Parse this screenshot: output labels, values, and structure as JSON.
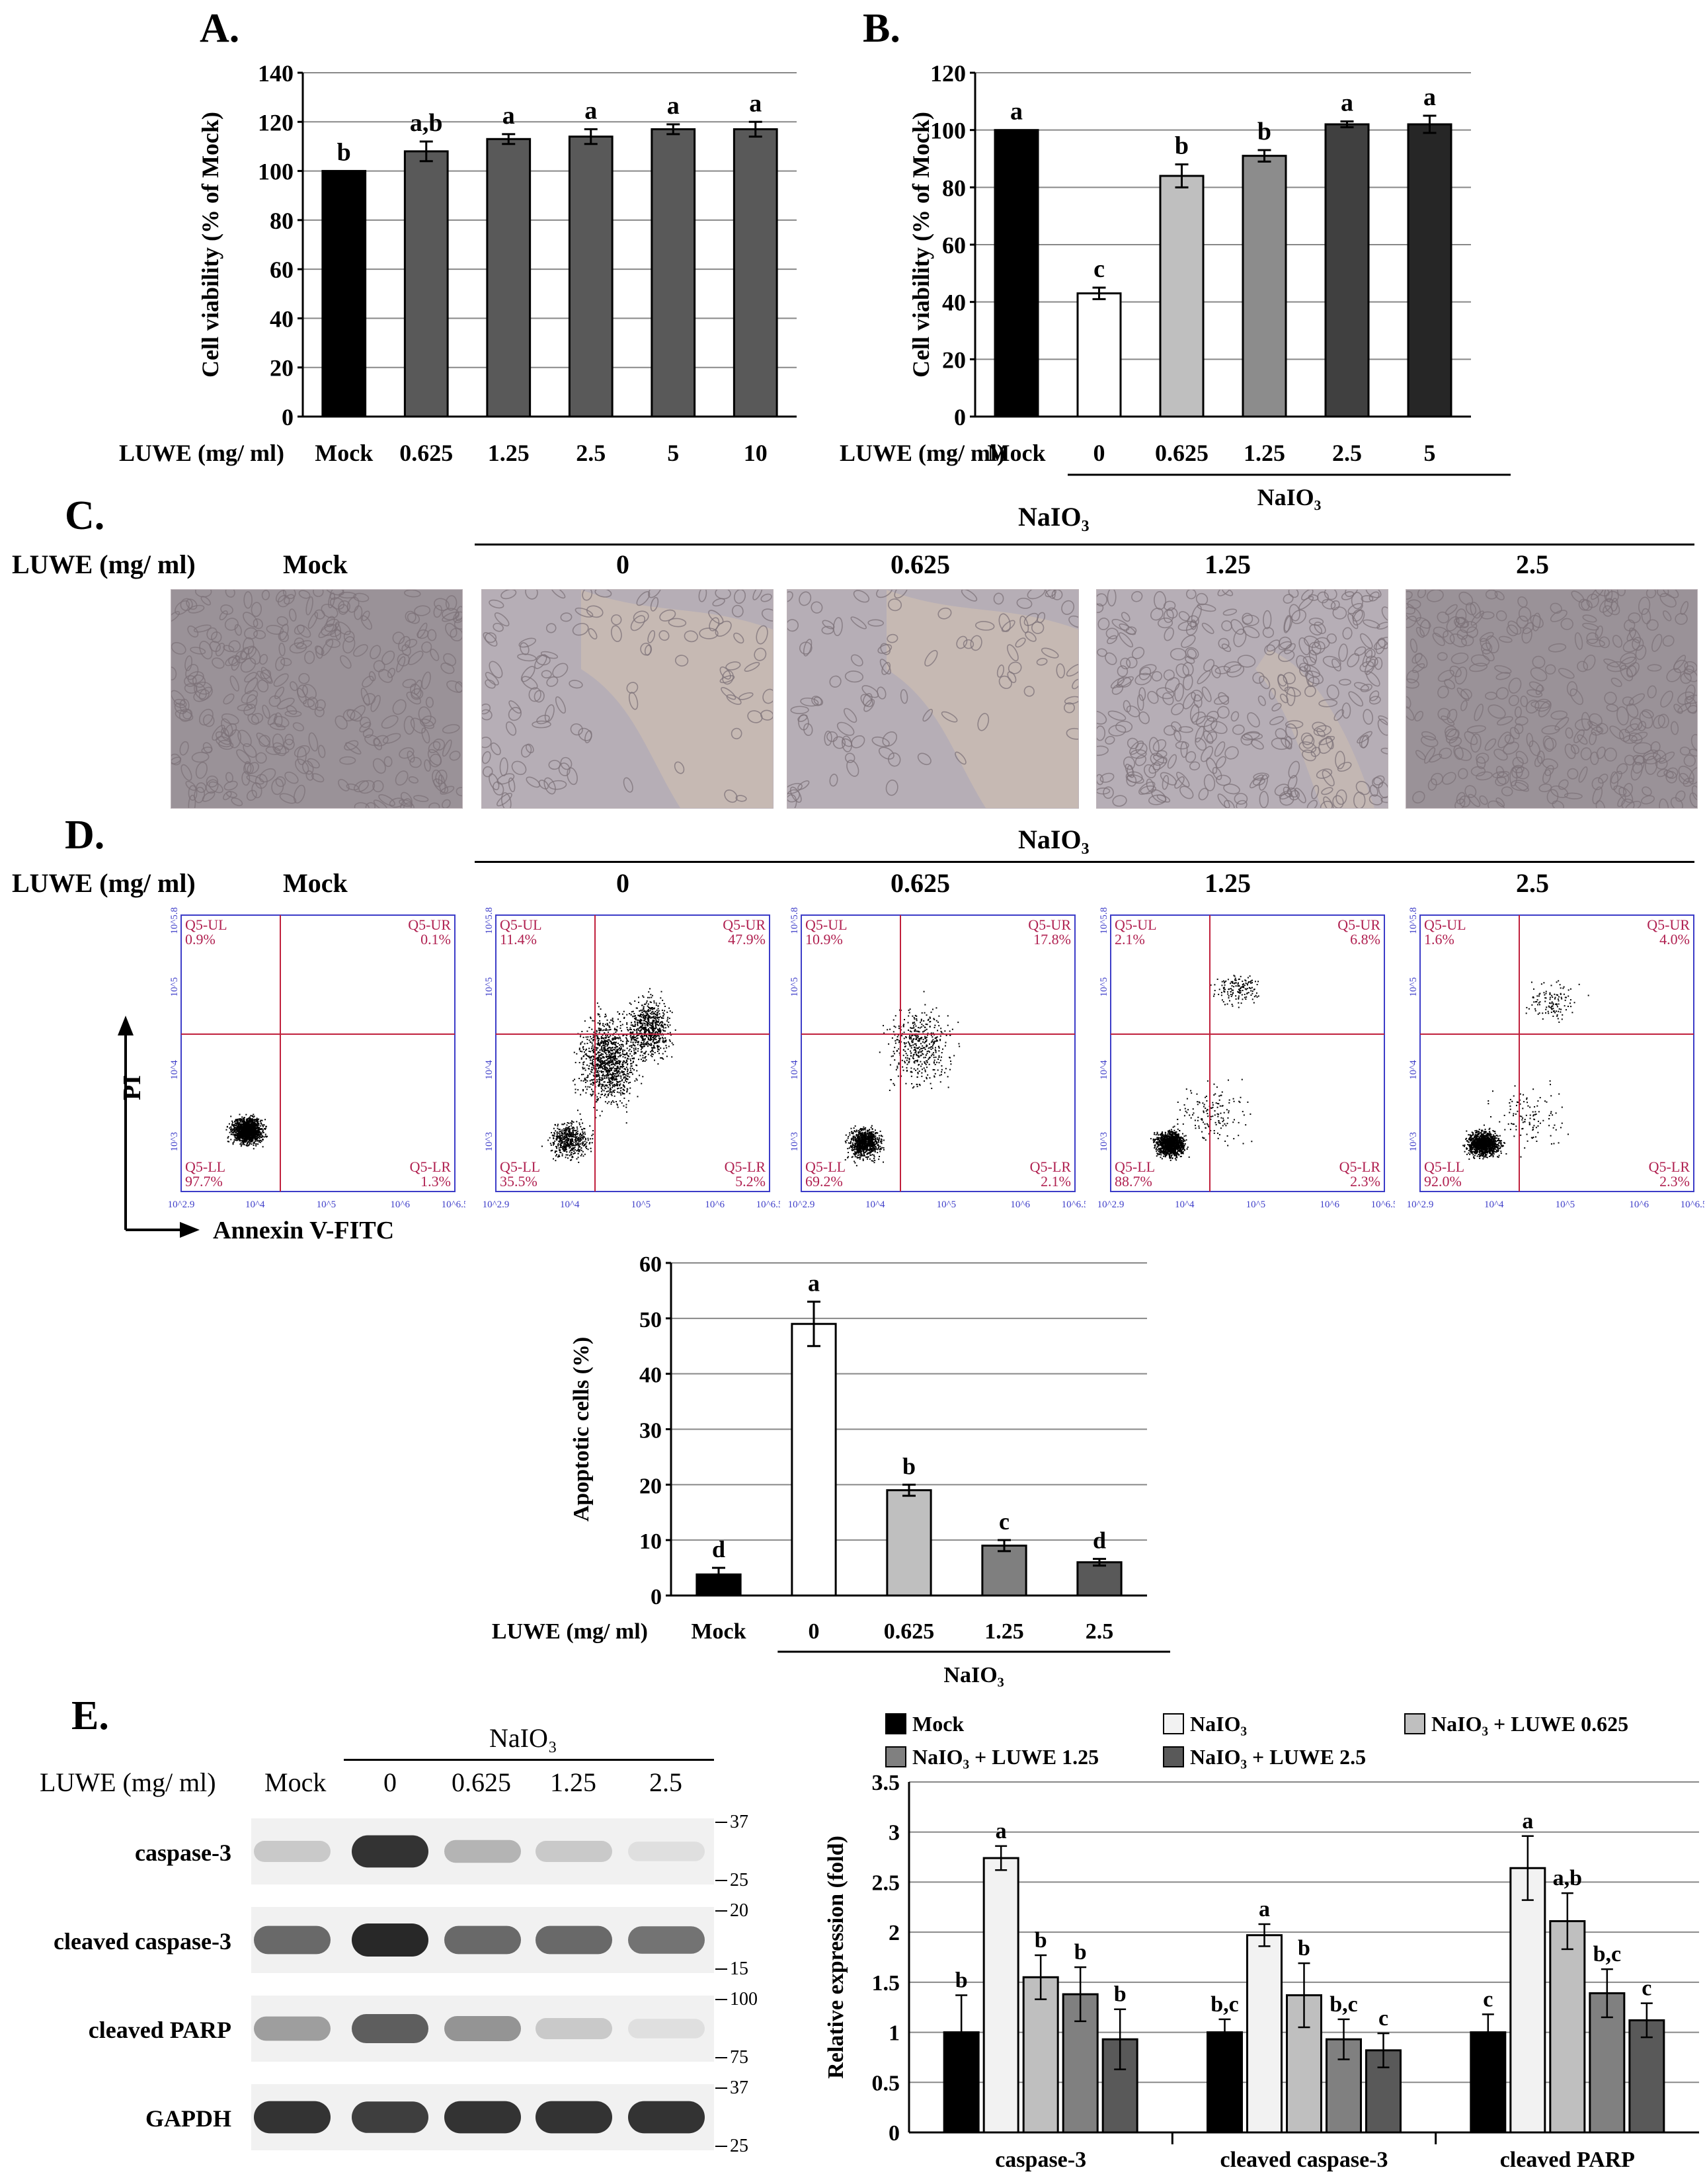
{
  "panel_letters": {
    "A": "A.",
    "B": "B.",
    "C": "C.",
    "D": "D.",
    "E": "E."
  },
  "luwe_label": "LUWE (mg/ ml)",
  "naio3_label": "NaIO₃",
  "panelC": {
    "columns": [
      "Mock",
      "0",
      "0.625",
      "1.25",
      "2.5"
    ],
    "colors": {
      "mock": "#9a9298",
      "sheet": "#b6aeb6",
      "cleared": "#c7b9b3",
      "cell": "#7c7278"
    }
  },
  "panelD_flow": {
    "columns": [
      "Mock",
      "0",
      "0.625",
      "1.25",
      "2.5"
    ],
    "y_axis_label": "PI",
    "x_axis_label": "Annexin V-FITC",
    "quadrant_names": [
      "Q5-UL",
      "Q5-UR",
      "Q5-LL",
      "Q5-LR"
    ],
    "x_ticks": [
      "10^2.9",
      "10^4",
      "10^5",
      "10^6",
      "10^6.5"
    ],
    "y_ticks": [
      "10^3",
      "10^4",
      "10^5",
      "10^5.8"
    ],
    "plots": [
      {
        "UL": "0.9%",
        "UR": "0.1%",
        "LL": "97.7%",
        "LR": "1.3%"
      },
      {
        "UL": "11.4%",
        "UR": "47.9%",
        "LL": "35.5%",
        "LR": "5.2%"
      },
      {
        "UL": "10.9%",
        "UR": "17.8%",
        "LL": "69.2%",
        "LR": "2.1%"
      },
      {
        "UL": "2.1%",
        "UR": "6.8%",
        "LL": "88.7%",
        "LR": "2.3%"
      },
      {
        "UL": "1.6%",
        "UR": "4.0%",
        "LL": "92.0%",
        "LR": "2.3%"
      }
    ],
    "colors": {
      "frame": "#3c3cc8",
      "gate": "#c0203c",
      "label": "#b02050",
      "dot": "#000000"
    }
  },
  "panelE_blot": {
    "header": [
      "Mock",
      "0",
      "0.625",
      "1.25",
      "2.5"
    ],
    "rows": [
      {
        "name": "caspase-3",
        "markers": [
          "37",
          "25"
        ],
        "intensity": [
          0.25,
          0.95,
          0.35,
          0.25,
          0.15
        ]
      },
      {
        "name": "cleaved caspase-3",
        "markers": [
          "20",
          "15"
        ],
        "intensity": [
          0.7,
          1.0,
          0.7,
          0.7,
          0.65
        ]
      },
      {
        "name": "cleaved PARP",
        "markers": [
          "100",
          "75"
        ],
        "intensity": [
          0.45,
          0.75,
          0.5,
          0.25,
          0.15
        ]
      },
      {
        "name": "GAPDH",
        "markers": [
          "37",
          "25"
        ],
        "intensity": [
          0.95,
          0.9,
          0.95,
          0.95,
          0.95
        ]
      }
    ]
  },
  "chart_data": [
    {
      "id": "A",
      "type": "bar",
      "categories": [
        "Mock",
        "0.625",
        "1.25",
        "2.5",
        "5",
        "10"
      ],
      "values": [
        100,
        108,
        113,
        114,
        117,
        117
      ],
      "errors": [
        0,
        4,
        2,
        3,
        2,
        3
      ],
      "letters": [
        "b",
        "a,b",
        "a",
        "a",
        "a",
        "a"
      ],
      "colors": [
        "#000000",
        "#595959",
        "#595959",
        "#595959",
        "#595959",
        "#595959"
      ],
      "ylabel": "Cell viability (% of Mock)",
      "xlabel": "LUWE (mg/ ml)",
      "ylim": [
        0,
        140
      ],
      "yticks": [
        0,
        20,
        40,
        60,
        80,
        100,
        120,
        140
      ],
      "grid": true
    },
    {
      "id": "B",
      "type": "bar",
      "categories": [
        "Mock",
        "0",
        "0.625",
        "1.25",
        "2.5",
        "5"
      ],
      "values": [
        100,
        43,
        84,
        91,
        102,
        102
      ],
      "errors": [
        0,
        2,
        4,
        2,
        1,
        3
      ],
      "letters": [
        "a",
        "c",
        "b",
        "b",
        "a",
        "a"
      ],
      "colors": [
        "#000000",
        "#ffffff",
        "#bfbfbf",
        "#8c8c8c",
        "#404040",
        "#262626"
      ],
      "ylabel": "Cell viability (% of Mock)",
      "xlabel": "LUWE (mg/ ml)",
      "group_label": "NaIO₃",
      "ylim": [
        0,
        120
      ],
      "yticks": [
        0,
        20,
        40,
        60,
        80,
        100,
        120
      ],
      "grid": true
    },
    {
      "id": "D",
      "type": "bar",
      "categories": [
        "Mock",
        "0",
        "0.625",
        "1.25",
        "2.5"
      ],
      "values": [
        3.8,
        49,
        19,
        9,
        6
      ],
      "errors": [
        1.2,
        4,
        1,
        1,
        0.6
      ],
      "letters": [
        "d",
        "a",
        "b",
        "c",
        "d"
      ],
      "colors": [
        "#000000",
        "#ffffff",
        "#bfbfbf",
        "#7f7f7f",
        "#595959"
      ],
      "ylabel": "Apoptotic cells (%)",
      "xlabel": "LUWE  (mg/ ml)",
      "group_label": "NaIO₃",
      "ylim": [
        0,
        60
      ],
      "yticks": [
        0,
        10,
        20,
        30,
        40,
        50,
        60
      ],
      "grid": true
    },
    {
      "id": "E",
      "type": "bar",
      "categories": [
        "caspase-3",
        "cleaved caspase-3",
        "cleaved PARP"
      ],
      "series": [
        {
          "name": "Mock",
          "color": "#000000",
          "values": [
            1.0,
            1.0,
            1.0
          ],
          "errors": [
            0.37,
            0.13,
            0.18
          ],
          "letters": [
            "b",
            "b,c",
            "c"
          ]
        },
        {
          "name": "NaIO₃",
          "color": "#f2f2f2",
          "values": [
            2.74,
            1.97,
            2.64
          ],
          "errors": [
            0.12,
            0.11,
            0.32
          ],
          "letters": [
            "a",
            "a",
            "a"
          ]
        },
        {
          "name": "NaIO₃ + LUWE 0.625",
          "color": "#bfbfbf",
          "values": [
            1.55,
            1.37,
            2.11
          ],
          "errors": [
            0.22,
            0.32,
            0.28
          ],
          "letters": [
            "b",
            "b",
            "a,b"
          ]
        },
        {
          "name": "NaIO₃ + LUWE 1.25",
          "color": "#808080",
          "values": [
            1.38,
            0.93,
            1.39
          ],
          "errors": [
            0.27,
            0.2,
            0.24
          ],
          "letters": [
            "b",
            "b,c",
            "b,c"
          ]
        },
        {
          "name": "NaIO₃ + LUWE 2.5",
          "color": "#595959",
          "values": [
            0.93,
            0.82,
            1.12
          ],
          "errors": [
            0.3,
            0.17,
            0.17
          ],
          "letters": [
            "b",
            "c",
            "c"
          ]
        }
      ],
      "ylabel": "Relative expression (fold)",
      "ylim": [
        0,
        3.5
      ],
      "yticks": [
        0,
        0.5,
        1,
        1.5,
        2,
        2.5,
        3,
        3.5
      ],
      "legend": "top",
      "grid": true
    }
  ]
}
